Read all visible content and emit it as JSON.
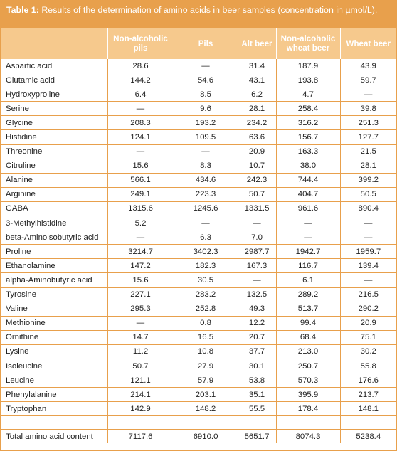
{
  "caption": {
    "label": "Table 1:",
    "text": " Results of the determination of amino acids in beer samples (concentration in µmol/L)."
  },
  "columns": [
    "",
    "Non-alcoholic pils",
    "Pils",
    "Alt beer",
    "Non-alcoholic wheat beer",
    "Wheat beer"
  ],
  "rows": [
    [
      "Aspartic acid",
      "28.6",
      "—",
      "31.4",
      "187.9",
      "43.9"
    ],
    [
      "Glutamic acid",
      "144.2",
      "54.6",
      "43.1",
      "193.8",
      "59.7"
    ],
    [
      "Hydroxyproline",
      "6.4",
      "8.5",
      "6.2",
      "4.7",
      "—"
    ],
    [
      "Serine",
      "—",
      "9.6",
      "28.1",
      "258.4",
      "39.8"
    ],
    [
      "Glycine",
      "208.3",
      "193.2",
      "234.2",
      "316.2",
      "251.3"
    ],
    [
      "Histidine",
      "124.1",
      "109.5",
      "63.6",
      "156.7",
      "127.7"
    ],
    [
      "Threonine",
      "—",
      "—",
      "20.9",
      "163.3",
      "21.5"
    ],
    [
      "Citruline",
      "15.6",
      "8.3",
      "10.7",
      "38.0",
      "28.1"
    ],
    [
      "Alanine",
      "566.1",
      "434.6",
      "242.3",
      "744.4",
      "399.2"
    ],
    [
      "Arginine",
      "249.1",
      "223.3",
      "50.7",
      "404.7",
      "50.5"
    ],
    [
      "GABA",
      "1315.6",
      "1245.6",
      "1331.5",
      "961.6",
      "890.4"
    ],
    [
      "3-Methylhistidine",
      "5.2",
      "—",
      "—",
      "—",
      "—"
    ],
    [
      "beta-Aminoisobutyric acid",
      "—",
      "6.3",
      "7.0",
      "—",
      "—"
    ],
    [
      "Proline",
      "3214.7",
      "3402.3",
      "2987.7",
      "1942.7",
      "1959.7"
    ],
    [
      "Ethanolamine",
      "147.2",
      "182.3",
      "167.3",
      "116.7",
      "139.4"
    ],
    [
      "alpha-Aminobutyric acid",
      "15.6",
      "30.5",
      "—",
      "6.1",
      "—"
    ],
    [
      "Tyrosine",
      "227.1",
      "283.2",
      "132.5",
      "289.2",
      "216.5"
    ],
    [
      "Valine",
      "295.3",
      "252.8",
      "49.3",
      "513.7",
      "290.2"
    ],
    [
      "Methionine",
      "—",
      "0.8",
      "12.2",
      "99.4",
      "20.9"
    ],
    [
      "Ornithine",
      "14.7",
      "16.5",
      "20.7",
      "68.4",
      "75.1"
    ],
    [
      "Lysine",
      "11.2",
      "10.8",
      "37.7",
      "213.0",
      "30.2"
    ],
    [
      "Isoleucine",
      "50.7",
      "27.9",
      "30.1",
      "250.7",
      "55.8"
    ],
    [
      "Leucine",
      "121.1",
      "57.9",
      "53.8",
      "570.3",
      "176.6"
    ],
    [
      "Phenylalanine",
      "214.1",
      "203.1",
      "35.1",
      "395.9",
      "213.7"
    ],
    [
      "Tryptophan",
      "142.9",
      "148.2",
      "55.5",
      "178.4",
      "148.1"
    ],
    [
      "",
      "",
      "",
      "",
      "",
      ""
    ],
    [
      "Total amino acid content",
      "7117.6",
      "6910.0",
      "5651.7",
      "8074.3",
      "5238.4"
    ]
  ],
  "colors": {
    "caption_bg": "#e8a04c",
    "header_bg": "#f6c98d",
    "rule": "#e8a04c"
  }
}
